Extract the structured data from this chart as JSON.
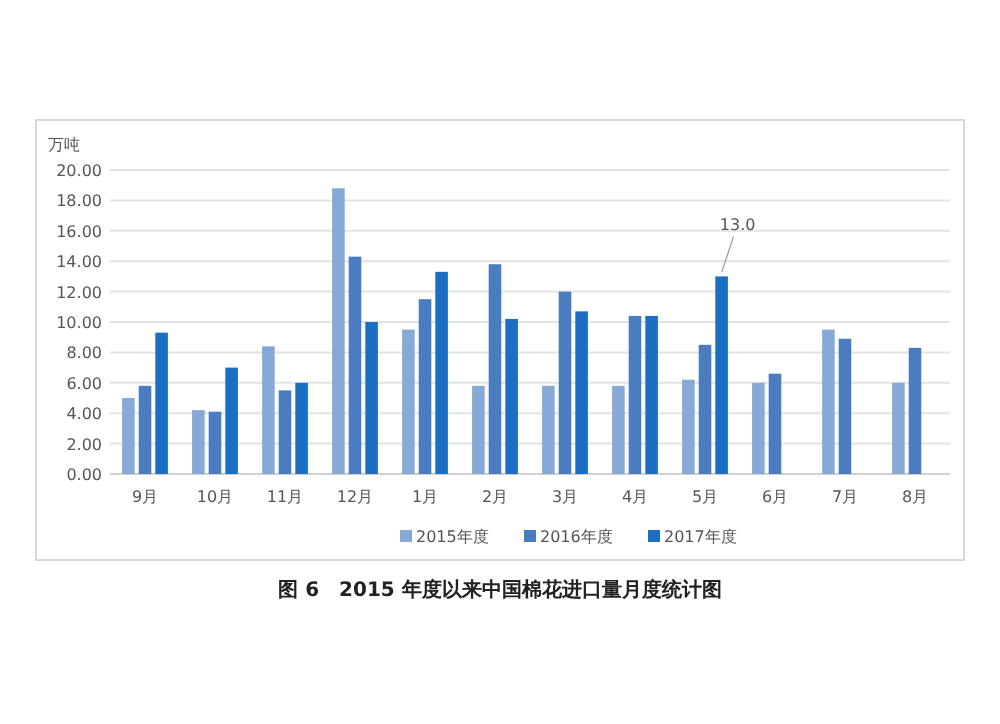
{
  "chart_data": {
    "type": "bar",
    "title": "图 6　2015 年度以来中国棉花进口量月度统计图",
    "ylabel": "万吨",
    "categories": [
      "9月",
      "10月",
      "11月",
      "12月",
      "1月",
      "2月",
      "3月",
      "4月",
      "5月",
      "6月",
      "7月",
      "8月"
    ],
    "series": [
      {
        "name": "2015年度",
        "color": "#86a9d8",
        "values": [
          5.0,
          4.2,
          8.4,
          18.8,
          9.5,
          5.8,
          5.8,
          5.8,
          6.2,
          6.0,
          9.5,
          6.0
        ]
      },
      {
        "name": "2016年度",
        "color": "#4a7cc0",
        "values": [
          5.8,
          4.1,
          5.5,
          14.3,
          11.5,
          13.8,
          12.0,
          10.4,
          8.5,
          6.6,
          8.9,
          8.3
        ]
      },
      {
        "name": "2017年度",
        "color": "#1a6fc4",
        "values": [
          9.3,
          7.0,
          6.0,
          10.0,
          13.3,
          10.2,
          10.7,
          10.4,
          13.0,
          null,
          null,
          null
        ],
        "value_labels": [
          null,
          null,
          null,
          null,
          null,
          null,
          null,
          null,
          "13.0",
          null,
          null,
          null
        ]
      }
    ],
    "ylim": [
      0,
      20
    ],
    "yticks": [
      {
        "value": 0,
        "label": "0.00"
      },
      {
        "value": 2,
        "label": "2.00"
      },
      {
        "value": 4,
        "label": "4.00"
      },
      {
        "value": 6,
        "label": "6.00"
      },
      {
        "value": 8,
        "label": "8.00"
      },
      {
        "value": 10,
        "label": "10.00"
      },
      {
        "value": 12,
        "label": "12.00"
      },
      {
        "value": 14,
        "label": "14.00"
      },
      {
        "value": 16,
        "label": "16.00"
      },
      {
        "value": 18,
        "label": "18.00"
      },
      {
        "value": 20,
        "label": "20.00"
      }
    ],
    "grid": "y",
    "legend": "bottom"
  }
}
